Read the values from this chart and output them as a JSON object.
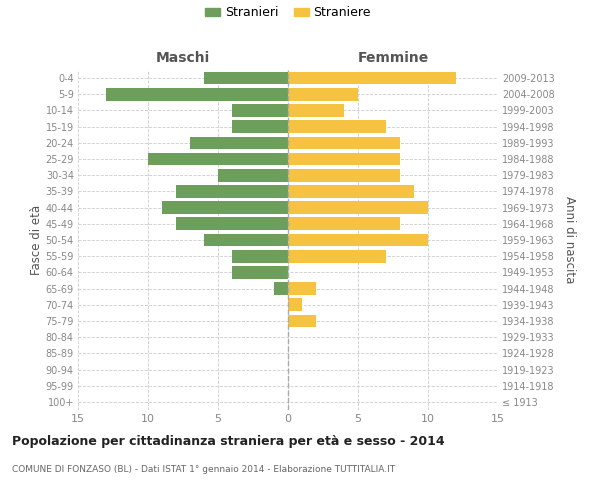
{
  "age_groups": [
    "100+",
    "95-99",
    "90-94",
    "85-89",
    "80-84",
    "75-79",
    "70-74",
    "65-69",
    "60-64",
    "55-59",
    "50-54",
    "45-49",
    "40-44",
    "35-39",
    "30-34",
    "25-29",
    "20-24",
    "15-19",
    "10-14",
    "5-9",
    "0-4"
  ],
  "birth_years": [
    "≤ 1913",
    "1914-1918",
    "1919-1923",
    "1924-1928",
    "1929-1933",
    "1934-1938",
    "1939-1943",
    "1944-1948",
    "1949-1953",
    "1954-1958",
    "1959-1963",
    "1964-1968",
    "1969-1973",
    "1974-1978",
    "1979-1983",
    "1984-1988",
    "1989-1993",
    "1994-1998",
    "1999-2003",
    "2004-2008",
    "2009-2013"
  ],
  "males": [
    0,
    0,
    0,
    0,
    0,
    0,
    0,
    1,
    4,
    4,
    6,
    8,
    9,
    8,
    5,
    10,
    7,
    4,
    4,
    13,
    6
  ],
  "females": [
    0,
    0,
    0,
    0,
    0,
    2,
    1,
    2,
    0,
    7,
    10,
    8,
    10,
    9,
    8,
    8,
    8,
    7,
    4,
    5,
    12
  ],
  "male_color": "#6d9e5c",
  "female_color": "#f5c242",
  "background_color": "#ffffff",
  "grid_color": "#cccccc",
  "title": "Popolazione per cittadinanza straniera per età e sesso - 2014",
  "subtitle": "COMUNE DI FONZASO (BL) - Dati ISTAT 1° gennaio 2014 - Elaborazione TUTTITALIA.IT",
  "ylabel_left": "Fasce di età",
  "ylabel_right": "Anni di nascita",
  "xlabel_left": "Maschi",
  "xlabel_right": "Femmine",
  "legend_stranieri": "Stranieri",
  "legend_straniere": "Straniere",
  "xlim": 15
}
